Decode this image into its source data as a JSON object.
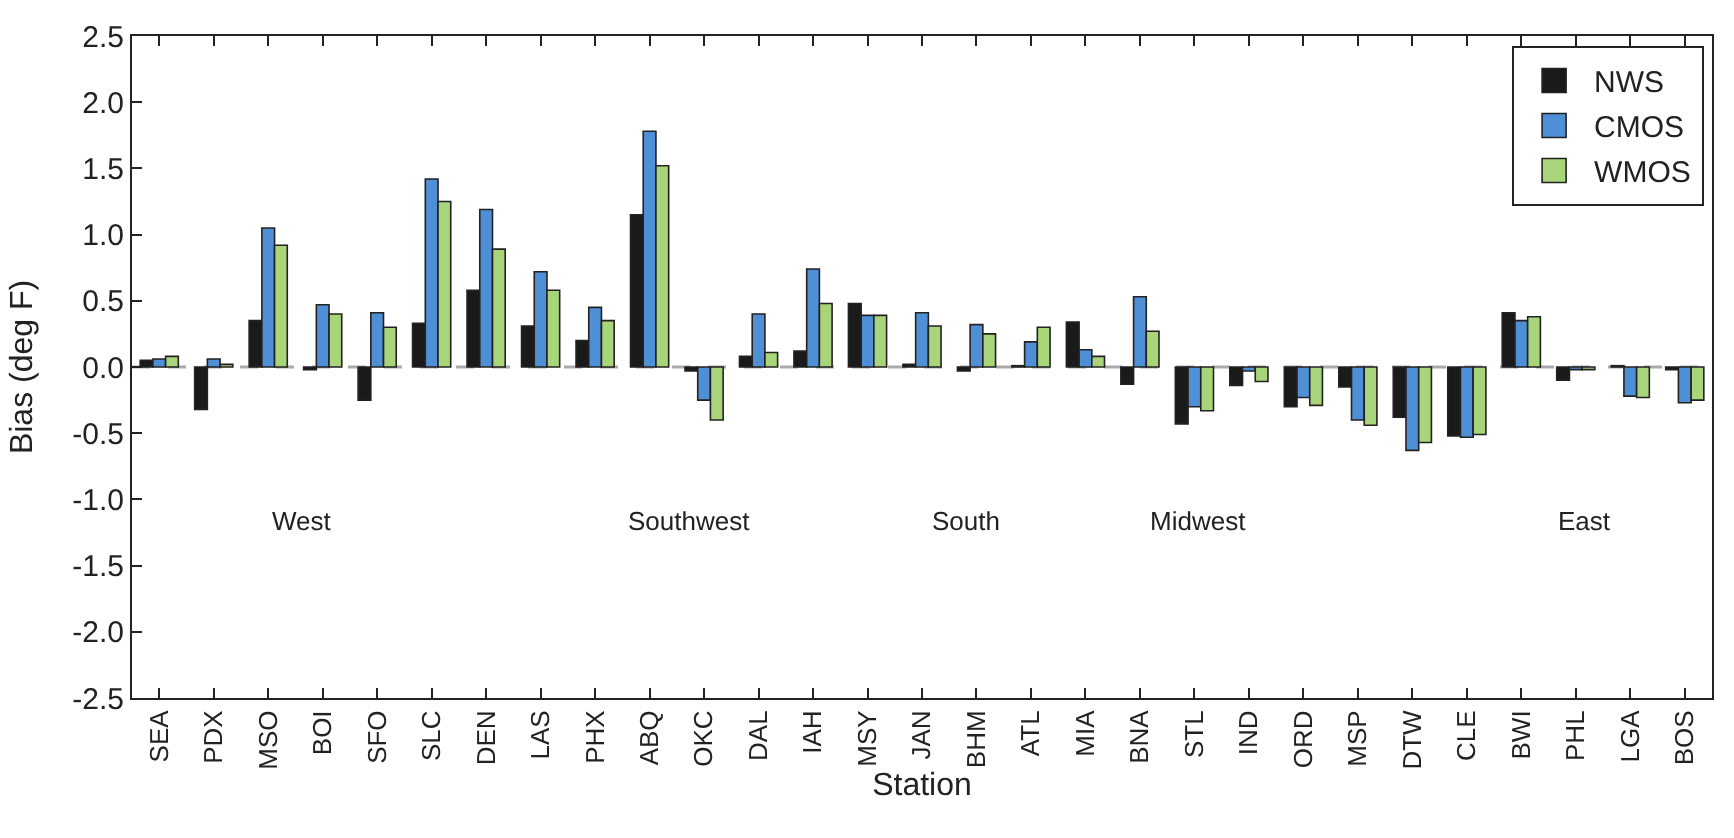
{
  "chart_data": {
    "type": "bar",
    "xlabel": "Station",
    "ylabel": "Bias (deg F)",
    "categories": [
      "SEA",
      "PDX",
      "MSO",
      "BOI",
      "SFO",
      "SLC",
      "DEN",
      "LAS",
      "PHX",
      "ABQ",
      "OKC",
      "DAL",
      "IAH",
      "MSY",
      "JAN",
      "BHM",
      "ATL",
      "MIA",
      "BNA",
      "STL",
      "IND",
      "ORD",
      "MSP",
      "DTW",
      "CLE",
      "BWI",
      "PHL",
      "LGA",
      "BOS"
    ],
    "series": [
      {
        "name": "NWS",
        "color": "#1a1a1a",
        "values": [
          0.05,
          -0.32,
          0.35,
          -0.02,
          -0.25,
          0.33,
          0.58,
          0.31,
          0.2,
          1.15,
          -0.03,
          0.08,
          0.12,
          0.48,
          0.02,
          -0.03,
          0.01,
          0.34,
          -0.13,
          -0.43,
          -0.14,
          -0.3,
          -0.15,
          -0.38,
          -0.52,
          0.41,
          -0.1,
          0.01,
          -0.02
        ]
      },
      {
        "name": "CMOS",
        "color": "#4f8fd6",
        "values": [
          0.06,
          0.06,
          1.05,
          0.47,
          0.41,
          1.42,
          1.19,
          0.72,
          0.45,
          1.78,
          -0.25,
          0.4,
          0.74,
          0.39,
          0.41,
          0.32,
          0.19,
          0.13,
          0.53,
          -0.3,
          -0.03,
          -0.23,
          -0.4,
          -0.63,
          -0.53,
          0.35,
          -0.02,
          -0.22,
          -0.27
        ]
      },
      {
        "name": "WMOS",
        "color": "#a8d47a",
        "values": [
          0.08,
          0.02,
          0.92,
          0.4,
          0.3,
          1.25,
          0.89,
          0.58,
          0.35,
          1.52,
          -0.4,
          0.11,
          0.48,
          0.39,
          0.31,
          0.25,
          0.3,
          0.08,
          0.27,
          -0.33,
          -0.11,
          -0.29,
          -0.44,
          -0.57,
          -0.51,
          0.38,
          -0.02,
          -0.23,
          -0.25
        ]
      }
    ],
    "ylim": [
      -2.5,
      2.5
    ],
    "yticks": [
      {
        "value": -2.5,
        "label": "-2.5"
      },
      {
        "value": -2,
        "label": "-2.0"
      },
      {
        "value": -1.5,
        "label": "-1.5"
      },
      {
        "value": -1,
        "label": "-1.0"
      },
      {
        "value": -0.5,
        "label": "-0.5"
      },
      {
        "value": 0,
        "label": "0.0"
      },
      {
        "value": 0.5,
        "label": "0.5"
      },
      {
        "value": 1,
        "label": "1.0"
      },
      {
        "value": 1.5,
        "label": "1.5"
      },
      {
        "value": 2,
        "label": "2.0"
      },
      {
        "value": 2.5,
        "label": "2.5"
      }
    ],
    "annotations": [
      "West",
      "Southwest",
      "South",
      "Midwest",
      "East"
    ],
    "ref_lines": [
      {
        "axis": "y",
        "value": 0,
        "color": "#aaaaaa",
        "line_style": "dashed"
      }
    ],
    "grid": false,
    "legend": "top right"
  }
}
